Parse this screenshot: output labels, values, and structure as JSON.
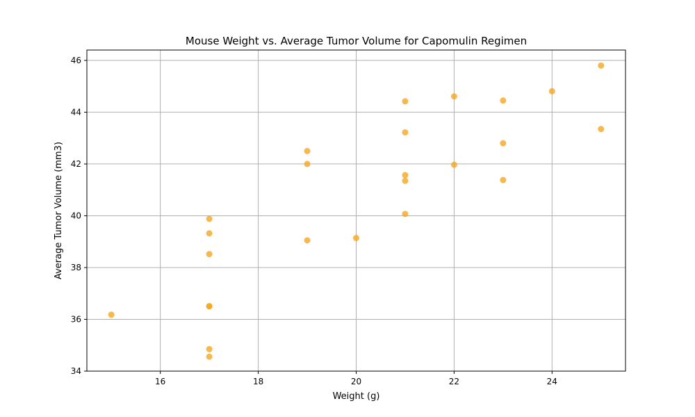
{
  "chart_data": {
    "type": "scatter",
    "title": "Mouse Weight vs. Average Tumor Volume for Capomulin Regimen",
    "xlabel": "Weight (g)",
    "ylabel": "Average Tumor Volume (mm3)",
    "xlim": [
      14.5,
      25.5
    ],
    "ylim": [
      34,
      46.4
    ],
    "xticks": [
      16,
      18,
      20,
      22,
      24
    ],
    "yticks": [
      34,
      36,
      38,
      40,
      42,
      44,
      46
    ],
    "grid": true,
    "marker_color": "#f5a623",
    "series": [
      {
        "points": [
          {
            "x": 15,
            "y": 36.18
          },
          {
            "x": 17,
            "y": 39.88
          },
          {
            "x": 17,
            "y": 39.32
          },
          {
            "x": 17,
            "y": 38.52
          },
          {
            "x": 17,
            "y": 36.51
          },
          {
            "x": 17,
            "y": 36.5
          },
          {
            "x": 17,
            "y": 34.85
          },
          {
            "x": 17,
            "y": 34.56
          },
          {
            "x": 19,
            "y": 42.5
          },
          {
            "x": 19,
            "y": 42.0
          },
          {
            "x": 19,
            "y": 39.05
          },
          {
            "x": 20,
            "y": 39.14
          },
          {
            "x": 21,
            "y": 44.42
          },
          {
            "x": 21,
            "y": 43.22
          },
          {
            "x": 21,
            "y": 41.57
          },
          {
            "x": 21,
            "y": 41.35
          },
          {
            "x": 21,
            "y": 40.07
          },
          {
            "x": 22,
            "y": 44.61
          },
          {
            "x": 22,
            "y": 41.97
          },
          {
            "x": 23,
            "y": 44.45
          },
          {
            "x": 23,
            "y": 42.8
          },
          {
            "x": 23,
            "y": 41.38
          },
          {
            "x": 24,
            "y": 44.81
          },
          {
            "x": 25,
            "y": 45.8
          },
          {
            "x": 25,
            "y": 43.35
          }
        ]
      }
    ]
  }
}
